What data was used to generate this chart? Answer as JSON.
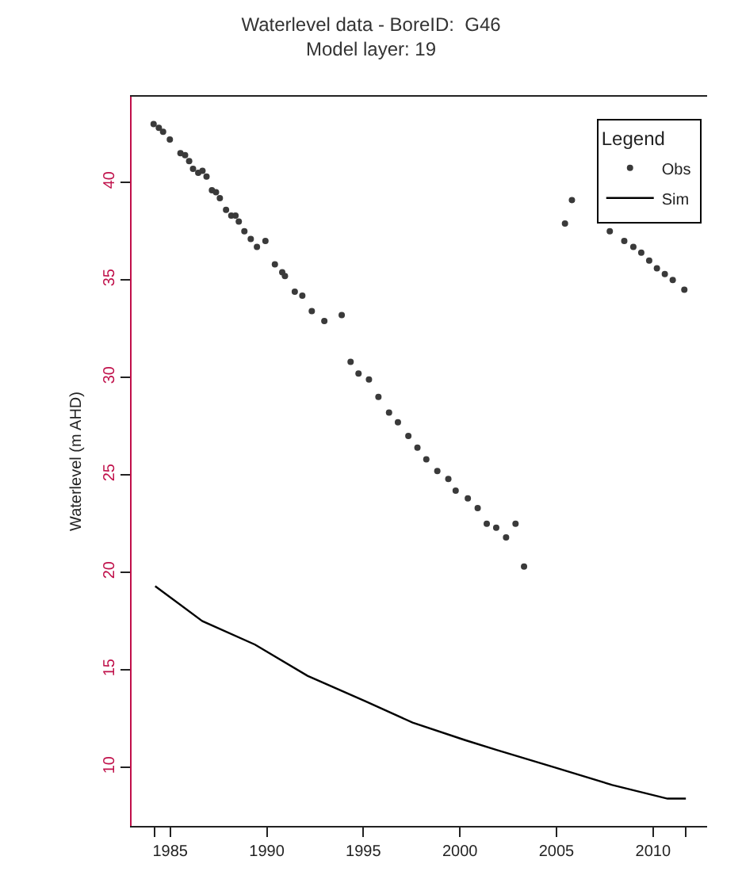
{
  "chart_data": {
    "type": "scatter",
    "title": "Waterlevel data - BoreID:  G46\nModel layer: 19",
    "ylabel": "Waterlevel (m AHD)",
    "legend_title": "Legend",
    "legend": "top right",
    "grid": false,
    "xlim": [
      1983.0,
      2012.8
    ],
    "ylim": [
      7,
      44.4
    ],
    "xticks": [
      {
        "value": 1984.2,
        "label": null
      },
      1985,
      1990,
      1995,
      2000,
      2005,
      2010,
      {
        "value": 2011.7,
        "label": null
      }
    ],
    "yticks": [
      10,
      15,
      20,
      25,
      30,
      35,
      40
    ],
    "series": [
      {
        "name": "Obs",
        "marker": "circle",
        "color": "#3a3a3a",
        "x": [
          1984.14,
          1984.41,
          1984.63,
          1984.98,
          1985.53,
          1985.77,
          1985.98,
          1986.18,
          1986.45,
          1986.67,
          1986.88,
          1987.16,
          1987.37,
          1987.57,
          1987.89,
          1988.16,
          1988.38,
          1988.55,
          1988.84,
          1989.17,
          1989.49,
          1989.93,
          1990.42,
          1990.8,
          1990.94,
          1991.45,
          1991.84,
          1992.33,
          1992.98,
          1993.88,
          1994.34,
          1994.75,
          1995.29,
          1995.78,
          1996.33,
          1996.79,
          1997.33,
          1997.8,
          1998.26,
          1998.83,
          1999.4,
          1999.78,
          2000.41,
          2000.92,
          2001.39,
          2001.88,
          2002.39,
          2002.88,
          2003.32,
          2005.44,
          2005.8,
          2007.76,
          2008.51,
          2008.98,
          2009.39,
          2009.8,
          2010.2,
          2010.61,
          2011.02,
          2011.62
        ],
        "values": [
          43.0,
          42.8,
          42.6,
          42.2,
          41.5,
          41.4,
          41.1,
          40.7,
          40.5,
          40.6,
          40.3,
          39.6,
          39.5,
          39.2,
          38.6,
          38.3,
          38.3,
          38.0,
          37.5,
          37.1,
          36.7,
          37.0,
          35.8,
          35.4,
          35.2,
          34.4,
          34.2,
          33.4,
          32.9,
          33.2,
          30.8,
          30.2,
          29.9,
          29.0,
          28.2,
          27.7,
          27.0,
          26.4,
          25.8,
          25.2,
          24.8,
          24.2,
          23.8,
          23.3,
          22.5,
          22.3,
          21.8,
          22.5,
          20.3,
          37.9,
          39.1,
          37.5,
          37.0,
          36.7,
          36.4,
          36.0,
          35.6,
          35.3,
          35.0,
          34.5
        ]
      },
      {
        "name": "Sim",
        "type": "line",
        "marker": "none",
        "line_style": "solid",
        "color": "#000000",
        "x": [
          1984.22,
          1986.67,
          1989.39,
          1992.11,
          1995.1,
          1997.55,
          2000.27,
          2001.9,
          2004.9,
          2007.89,
          2010.75,
          2011.7
        ],
        "values": [
          19.3,
          17.5,
          16.3,
          14.7,
          13.4,
          12.3,
          11.4,
          10.9,
          10.0,
          9.1,
          8.4,
          8.4
        ]
      }
    ]
  }
}
